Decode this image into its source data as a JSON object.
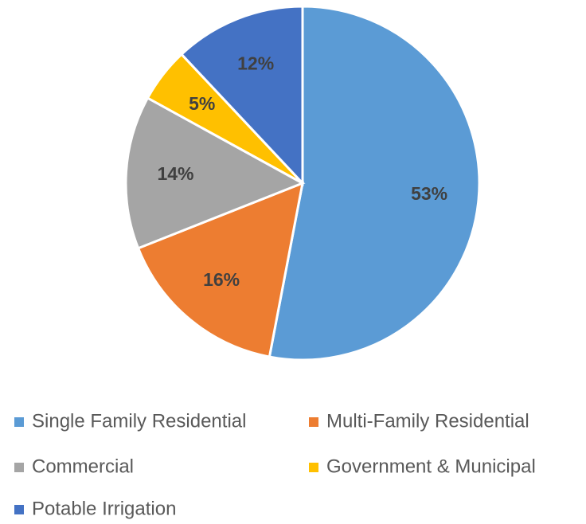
{
  "chart_data": {
    "type": "pie",
    "categories": [
      "Single Family Residential",
      "Multi-Family Residential",
      "Commercial",
      "Government & Municipal",
      "Potable Irrigation"
    ],
    "values": [
      53,
      16,
      14,
      5,
      12
    ],
    "value_labels": [
      "53%",
      "16%",
      "14%",
      "5%",
      "12%"
    ],
    "colors": [
      "#5b9bd5",
      "#ed7d31",
      "#a5a5a5",
      "#ffc000",
      "#4472c4"
    ],
    "legend": "bottom"
  }
}
